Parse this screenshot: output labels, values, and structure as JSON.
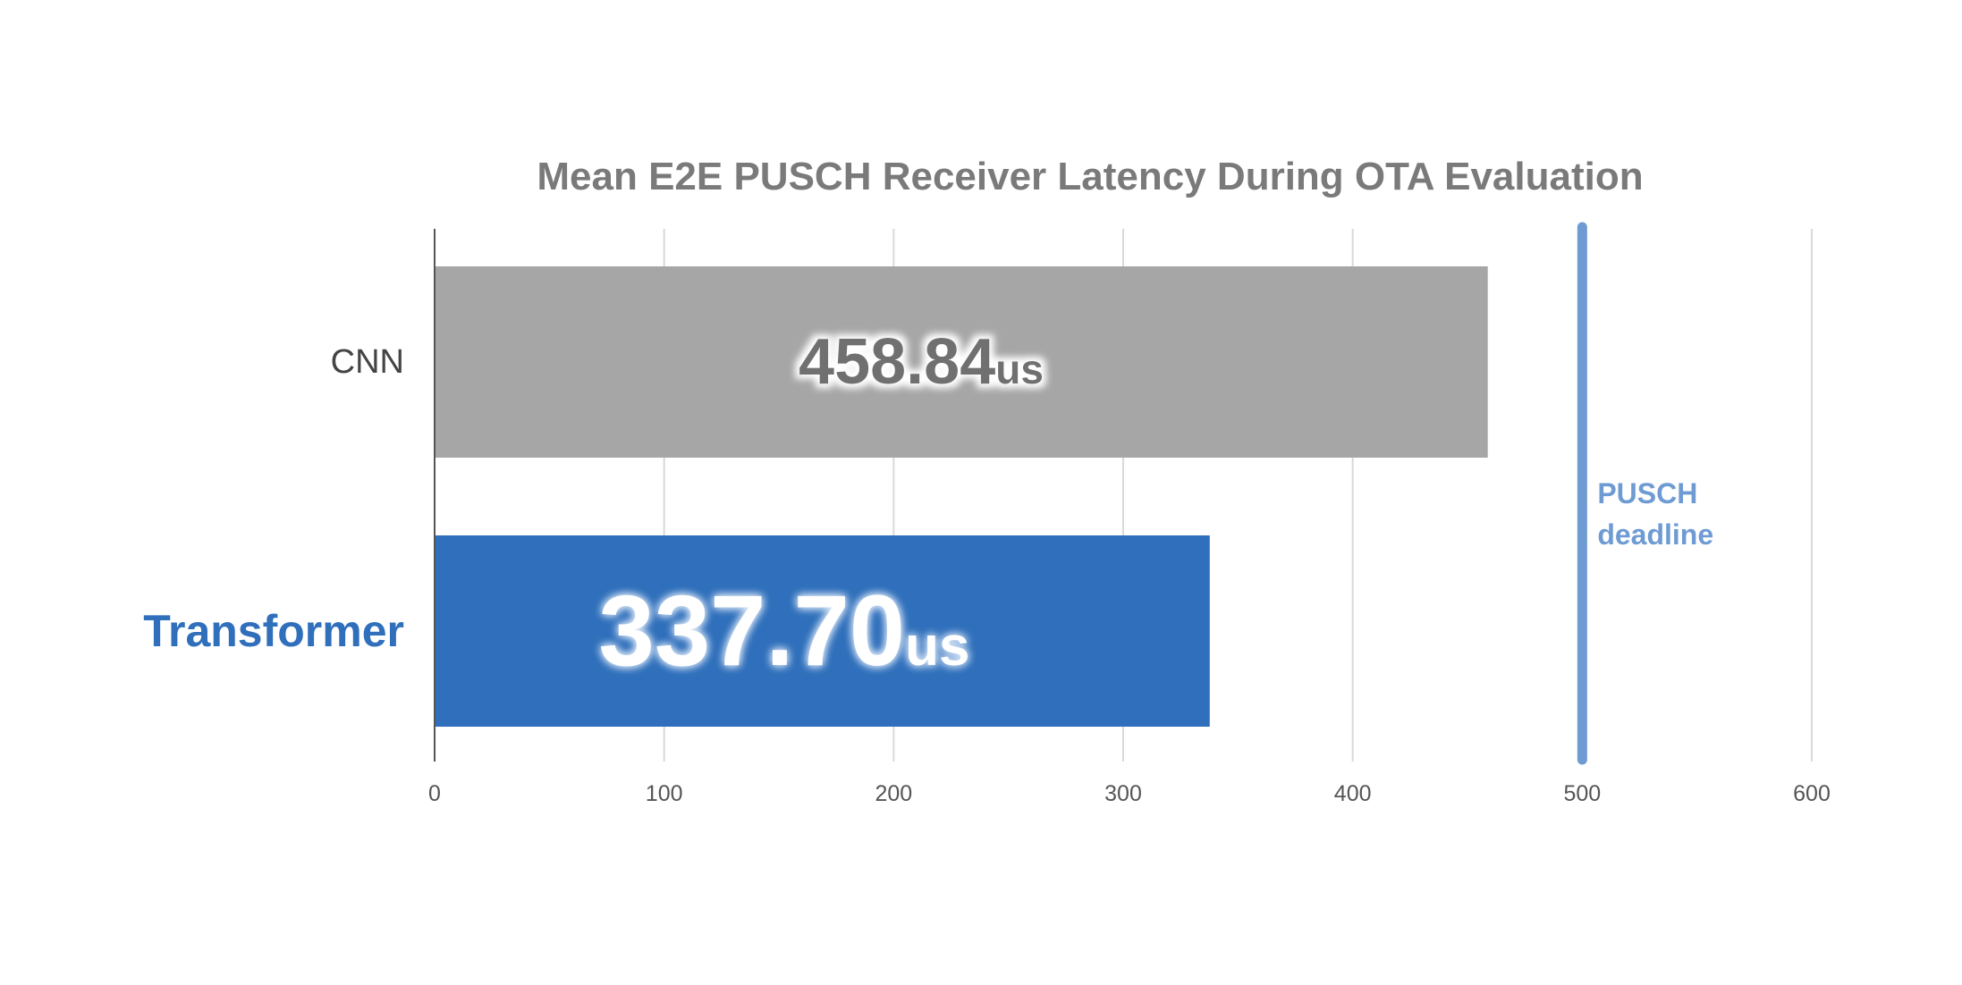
{
  "chart_data": {
    "type": "bar",
    "orientation": "horizontal",
    "title": "Mean E2E PUSCH Receiver Latency During OTA Evaluation",
    "categories": [
      "CNN",
      "Transformer"
    ],
    "values": [
      458.84,
      337.7
    ],
    "value_labels": [
      {
        "number": "458.84",
        "unit": "us"
      },
      {
        "number": "337.70",
        "unit": "us"
      }
    ],
    "bar_colors": [
      "#a6a6a6",
      "#2f6fbb"
    ],
    "category_label_colors": [
      "#444444",
      "#2f6fbb"
    ],
    "xlim": [
      0,
      600
    ],
    "xticks": [
      0,
      100,
      200,
      300,
      400,
      500,
      600
    ],
    "xtick_labels": [
      "0",
      "100",
      "200",
      "300",
      "400",
      "500",
      "600"
    ],
    "grid": true,
    "reference_line": {
      "value": 500,
      "label_lines": [
        "PUSCH",
        "deadline"
      ],
      "color": "#6f9bd3"
    }
  }
}
